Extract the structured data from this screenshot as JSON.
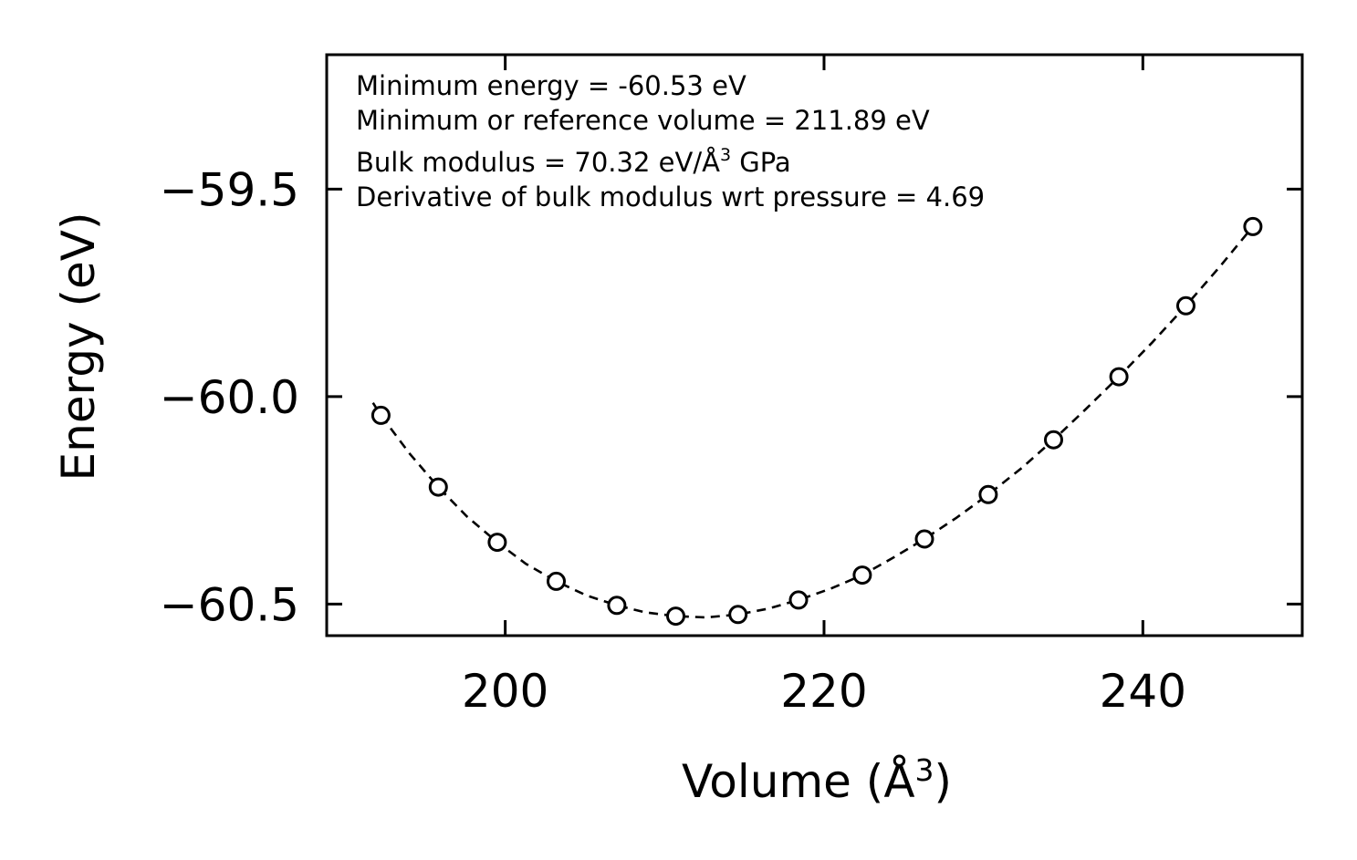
{
  "chart_data": {
    "type": "scatter",
    "xlabel": "Volume (Å",
    "xlabel_sup": "3",
    "xlabel_end": ")",
    "ylabel": "Energy (eV)",
    "xlim": [
      188.8,
      250.0
    ],
    "ylim": [
      -60.576,
      -59.176
    ],
    "xticks": [
      200,
      220,
      240
    ],
    "xtick_labels": [
      "200",
      "220",
      "240"
    ],
    "yticks": [
      -59.5,
      -60.0,
      -60.5
    ],
    "ytick_labels": [
      "−59.5",
      "−60.0",
      "−60.5"
    ],
    "colors": {
      "axes": "#000000",
      "points": "#000000",
      "fit": "#000000",
      "background": "#ffffff"
    },
    "series": [
      {
        "name": "data",
        "style": "open-circle",
        "x": [
          192.2,
          195.8,
          199.5,
          203.2,
          207.0,
          210.7,
          214.6,
          218.4,
          222.4,
          226.3,
          230.3,
          234.4,
          238.5,
          242.7,
          246.9
        ],
        "y": [
          -60.045,
          -60.218,
          -60.351,
          -60.445,
          -60.503,
          -60.529,
          -60.525,
          -60.49,
          -60.43,
          -60.343,
          -60.236,
          -60.104,
          -59.952,
          -59.781,
          -59.59
        ]
      },
      {
        "name": "fit",
        "style": "dashed-line",
        "x": [
          191.7,
          192.2,
          194.0,
          195.8,
          197.6,
          199.5,
          201.3,
          203.2,
          205.1,
          207.0,
          208.8,
          210.7,
          212.6,
          214.6,
          216.5,
          218.4,
          220.4,
          222.4,
          224.3,
          226.3,
          228.3,
          230.3,
          232.4,
          234.4,
          236.4,
          238.5,
          240.6,
          242.7,
          244.8,
          246.9,
          247.1
        ],
        "y": [
          -60.015,
          -60.045,
          -60.137,
          -60.218,
          -60.289,
          -60.351,
          -60.403,
          -60.445,
          -60.479,
          -60.503,
          -60.52,
          -60.529,
          -60.532,
          -60.525,
          -60.511,
          -60.49,
          -60.463,
          -60.43,
          -60.389,
          -60.343,
          -60.292,
          -60.236,
          -60.172,
          -60.104,
          -60.031,
          -59.952,
          -59.869,
          -59.781,
          -59.688,
          -59.59,
          -59.58
        ]
      }
    ],
    "annotations": [
      {
        "text": "Minimum energy = -60.53 eV"
      },
      {
        "text": "Minimum or reference volume = 211.89 eV"
      },
      {
        "text": "Bulk modulus = 70.32 eV/Å",
        "sup": "3",
        "suffix": " GPa"
      },
      {
        "text": "Derivative of bulk modulus wrt pressure = 4.69"
      }
    ]
  }
}
